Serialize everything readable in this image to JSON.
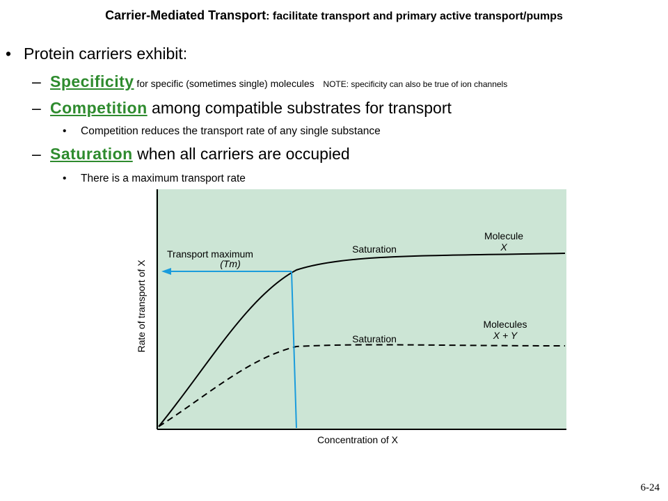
{
  "header": {
    "title_main": "Carrier-Mediated Transport",
    "title_sub": ": facilitate transport and primary active transport/pumps"
  },
  "content": {
    "intro": "Protein carriers exhibit:",
    "items": [
      {
        "term": "Specificity",
        "text": " for specific (sometimes single) molecules",
        "note": "NOTE: specificity can also be true of ion channels"
      },
      {
        "term": "Competition",
        "text": " among compatible substrates for transport",
        "sub": "Competition reduces the transport rate of any single substance"
      },
      {
        "term": "Saturation",
        "text": " when all carriers are occupied",
        "sub": "There is a maximum transport rate"
      }
    ]
  },
  "figure": {
    "background": "#cce5d5",
    "arrow_color": "#1a9cdc",
    "y_label": "Rate of transport of X",
    "x_label": "Concentration of X",
    "tmax_label": "Transport maximum",
    "tmax_symbol": "(Tm)",
    "saturation_upper": "Saturation",
    "saturation_lower": "Saturation",
    "molecule_label": "Molecule",
    "molecule_x": "X",
    "molecules_label": "Molecules",
    "molecules_xy": "X + Y"
  },
  "footer": {
    "slide_number": "6-24"
  }
}
